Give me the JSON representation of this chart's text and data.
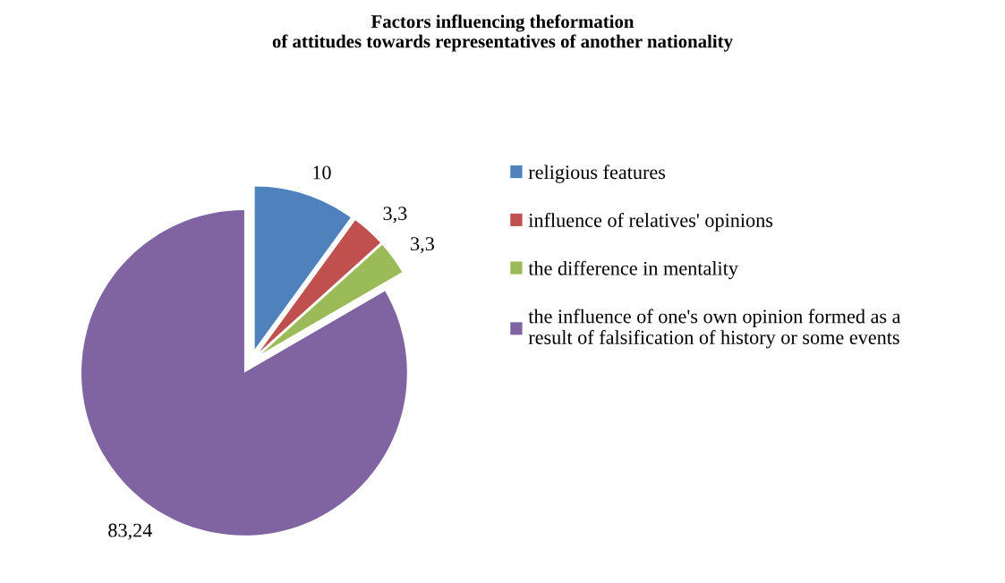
{
  "chart_data": {
    "type": "pie",
    "title": "Factors influencing theformation\nof attitudes towards representatives of another nationality",
    "categories": [
      "religious features",
      "influence of relatives' opinions",
      "the difference in mentality",
      "the influence of one's own opinion formed as a\nresult of falsification of history or some events"
    ],
    "values": [
      10,
      3.3,
      3.3,
      83.24
    ],
    "value_labels": [
      "10",
      "3,3",
      "3,3",
      "83,24"
    ],
    "colors": [
      "#4f81bd",
      "#c0504d",
      "#9bbb59",
      "#8064a2"
    ],
    "legend": "right"
  }
}
